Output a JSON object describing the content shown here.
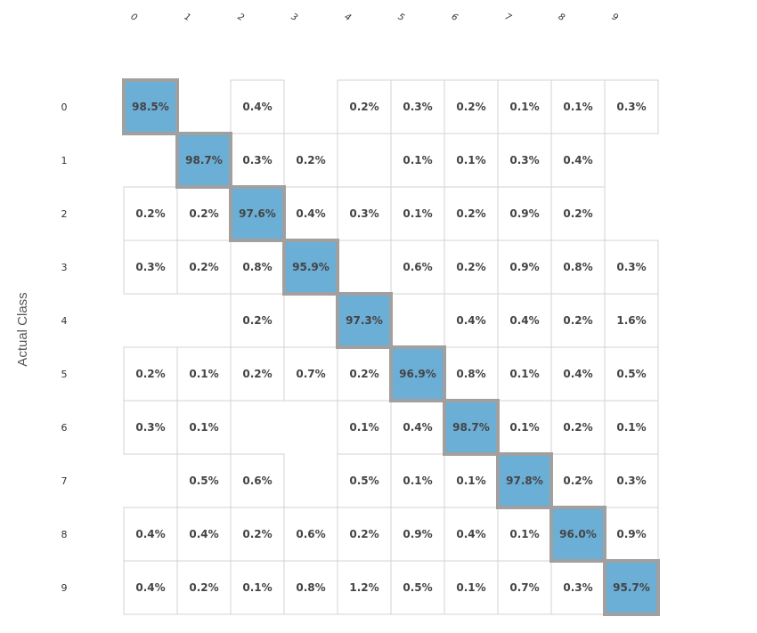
{
  "chart_data": {
    "type": "heatmap",
    "title": "",
    "xlabel": "",
    "ylabel": "Actual Class",
    "columns": [
      "0",
      "1",
      "2",
      "3",
      "4",
      "5",
      "6",
      "7",
      "8",
      "9"
    ],
    "rows": [
      "0",
      "1",
      "2",
      "3",
      "4",
      "5",
      "6",
      "7",
      "8",
      "9"
    ],
    "highlight_color": "#6baed6",
    "cells": [
      [
        "98.5%",
        "",
        "0.4%",
        "",
        "0.2%",
        "0.3%",
        "0.2%",
        "0.1%",
        "0.1%",
        "0.3%"
      ],
      [
        "",
        "98.7%",
        "0.3%",
        "0.2%",
        "",
        "0.1%",
        "0.1%",
        "0.3%",
        "0.4%",
        ""
      ],
      [
        "0.2%",
        "0.2%",
        "97.6%",
        "0.4%",
        "0.3%",
        "0.1%",
        "0.2%",
        "0.9%",
        "0.2%",
        ""
      ],
      [
        "0.3%",
        "0.2%",
        "0.8%",
        "95.9%",
        "",
        "0.6%",
        "0.2%",
        "0.9%",
        "0.8%",
        "0.3%"
      ],
      [
        "",
        "",
        "0.2%",
        "",
        "97.3%",
        "",
        "0.4%",
        "0.4%",
        "0.2%",
        "1.6%"
      ],
      [
        "0.2%",
        "0.1%",
        "0.2%",
        "0.7%",
        "0.2%",
        "96.9%",
        "0.8%",
        "0.1%",
        "0.4%",
        "0.5%"
      ],
      [
        "0.3%",
        "0.1%",
        "",
        "",
        "0.1%",
        "0.4%",
        "98.7%",
        "0.1%",
        "0.2%",
        "0.1%"
      ],
      [
        "",
        "0.5%",
        "0.6%",
        "",
        "0.5%",
        "0.1%",
        "0.1%",
        "97.8%",
        "0.2%",
        "0.3%"
      ],
      [
        "0.4%",
        "0.4%",
        "0.2%",
        "0.6%",
        "0.2%",
        "0.9%",
        "0.4%",
        "0.1%",
        "96.0%",
        "0.9%"
      ],
      [
        "0.4%",
        "0.2%",
        "0.1%",
        "0.8%",
        "1.2%",
        "0.5%",
        "0.1%",
        "0.7%",
        "0.3%",
        "95.7%"
      ]
    ]
  }
}
